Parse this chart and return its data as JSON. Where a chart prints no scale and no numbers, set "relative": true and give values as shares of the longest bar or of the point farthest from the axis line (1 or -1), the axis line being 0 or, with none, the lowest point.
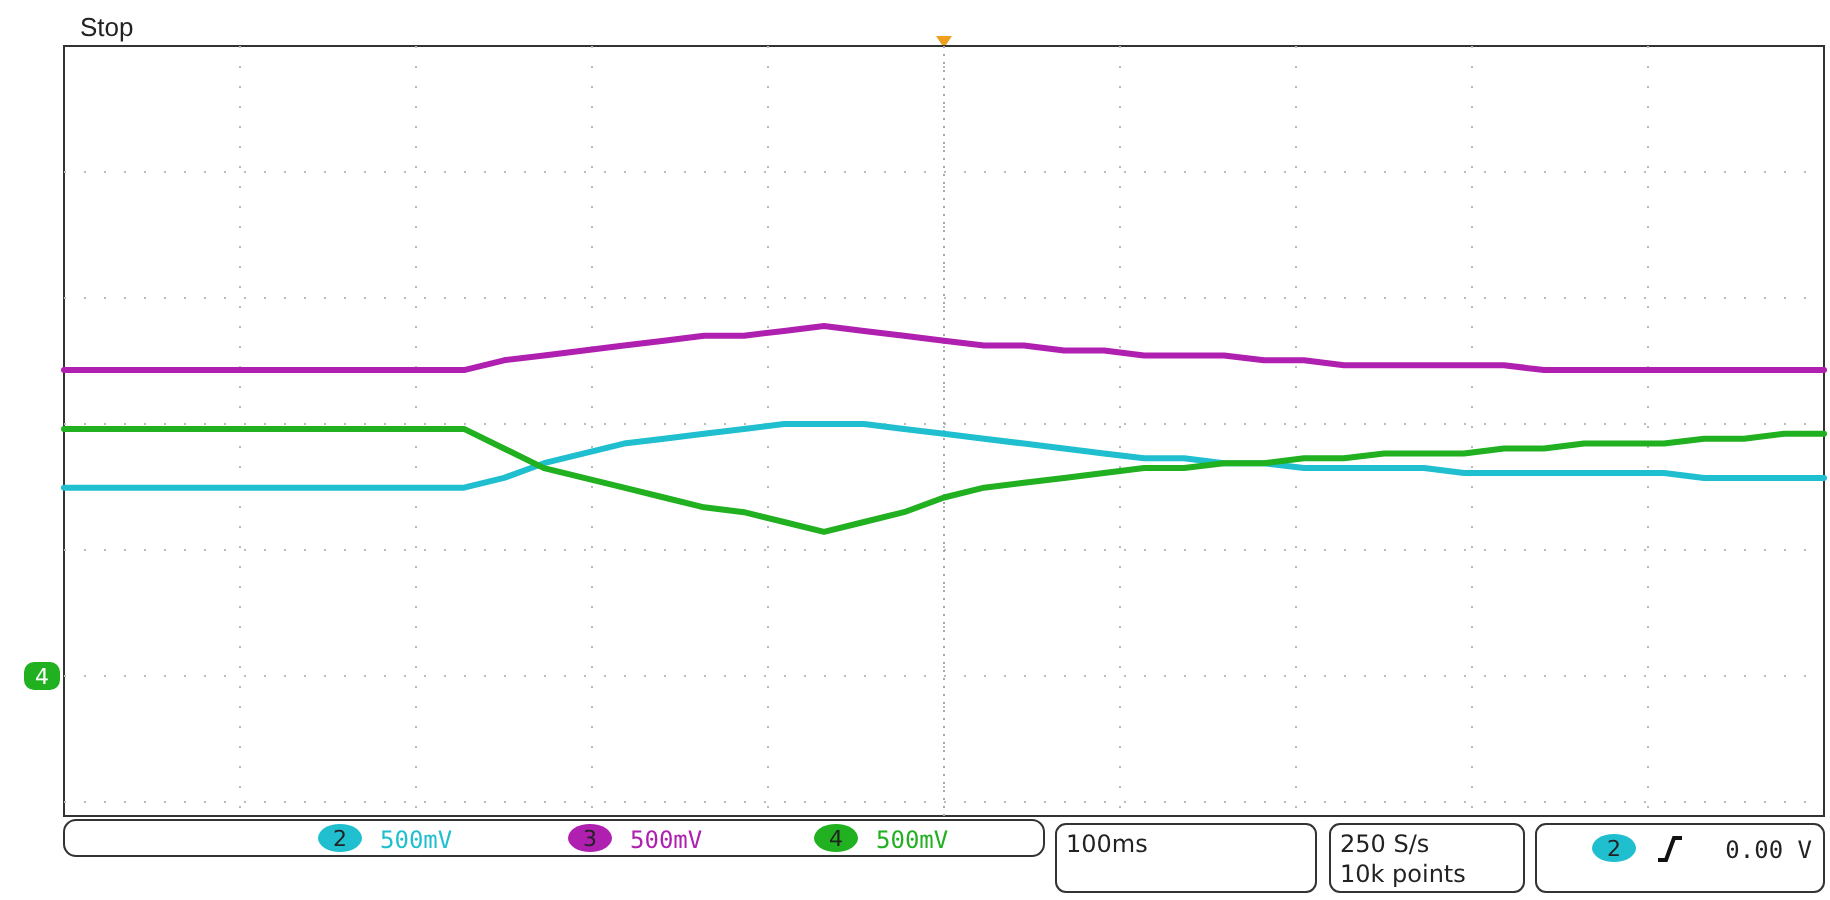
{
  "chart_data": {
    "type": "line",
    "relative": true,
    "grid": true,
    "legend": "bottom",
    "marker": "none",
    "line_style": "solid",
    "categories": [
      null,
      null,
      null,
      null,
      null,
      null,
      null,
      null,
      null,
      null,
      null,
      null,
      null,
      null,
      null,
      null,
      null,
      null,
      null,
      null,
      null,
      null,
      null,
      null,
      null,
      null,
      null,
      null,
      null,
      null,
      null,
      null,
      null,
      null,
      null,
      null,
      null,
      null,
      null,
      null,
      null,
      null,
      null,
      null,
      null
    ],
    "series": [
      {
        "name": "2",
        "color": "#1fbfcf",
        "values": [
          0.67,
          0.67,
          0.67,
          0.67,
          0.67,
          0.67,
          0.67,
          0.67,
          0.67,
          0.67,
          0.67,
          0.69,
          0.72,
          0.74,
          0.76,
          0.77,
          0.78,
          0.79,
          0.8,
          0.8,
          0.8,
          0.79,
          0.78,
          0.77,
          0.76,
          0.75,
          0.74,
          0.73,
          0.73,
          0.72,
          0.72,
          0.71,
          0.71,
          0.71,
          0.71,
          0.7,
          0.7,
          0.7,
          0.7,
          0.7,
          0.7,
          0.69,
          0.69,
          0.69,
          0.69
        ]
      },
      {
        "name": "3",
        "color": "#b020b0",
        "values": [
          0.91,
          0.91,
          0.91,
          0.91,
          0.91,
          0.91,
          0.91,
          0.91,
          0.91,
          0.91,
          0.91,
          0.93,
          0.94,
          0.95,
          0.96,
          0.97,
          0.98,
          0.98,
          0.99,
          1,
          0.99,
          0.98,
          0.97,
          0.96,
          0.96,
          0.95,
          0.95,
          0.94,
          0.94,
          0.94,
          0.93,
          0.93,
          0.92,
          0.92,
          0.92,
          0.92,
          0.92,
          0.91,
          0.91,
          0.91,
          0.91,
          0.91,
          0.91,
          0.91,
          0.91
        ]
      },
      {
        "name": "4",
        "color": "#20b020",
        "values": [
          0.79,
          0.79,
          0.79,
          0.79,
          0.79,
          0.79,
          0.79,
          0.79,
          0.79,
          0.79,
          0.79,
          0.75,
          0.71,
          0.69,
          0.67,
          0.65,
          0.63,
          0.62,
          0.6,
          0.58,
          0.6,
          0.62,
          0.65,
          0.67,
          0.68,
          0.69,
          0.7,
          0.71,
          0.71,
          0.72,
          0.72,
          0.73,
          0.73,
          0.74,
          0.74,
          0.74,
          0.75,
          0.75,
          0.76,
          0.76,
          0.76,
          0.77,
          0.77,
          0.78,
          0.78
        ]
      }
    ],
    "annotations": [
      "Stop",
      "500mV",
      "500mV",
      "500mV",
      "100ms",
      "250 S/s",
      "10k points",
      "0.00 V"
    ]
  }
}
